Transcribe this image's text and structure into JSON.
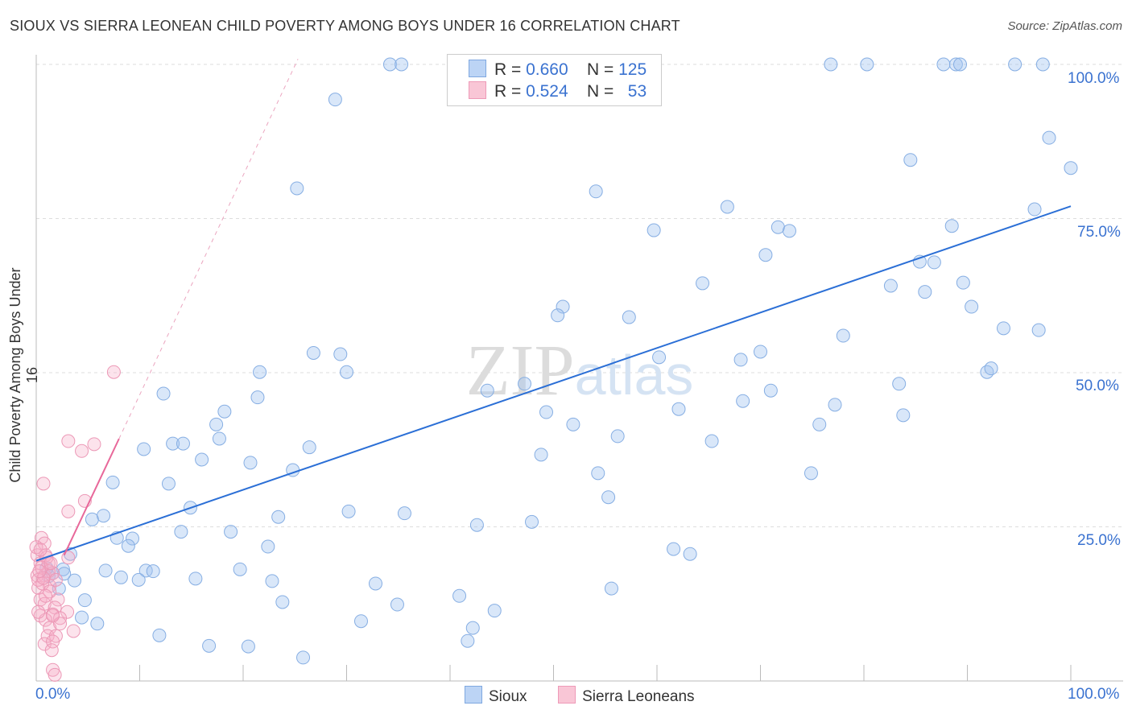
{
  "title": "SIOUX VS SIERRA LEONEAN CHILD POVERTY AMONG BOYS UNDER 16 CORRELATION CHART",
  "source": "Source: ZipAtlas.com",
  "watermark": "ZIPatlas",
  "legend": {
    "rows": [
      {
        "r_label": "R =",
        "r": "0.660",
        "n_label": "N =",
        "n": "125"
      },
      {
        "r_label": "R =",
        "r": "0.524",
        "n_label": "N =",
        "n": "53"
      }
    ],
    "series": [
      "Sioux",
      "Sierra Leoneans"
    ]
  },
  "colors": {
    "sioux": "#6f9fe0",
    "sioux_line": "#2b6fd6",
    "sierra": "#ee8fb0",
    "sierra_line": "#e8689a",
    "tick": "#3a72d0"
  },
  "chart_data": {
    "type": "scatter",
    "title": "SIOUX VS SIERRA LEONEAN CHILD POVERTY AMONG BOYS UNDER 16 CORRELATION CHART",
    "xlabel": "",
    "ylabel": "Child Poverty Among Boys Under 16",
    "xlim": [
      0,
      100
    ],
    "ylim": [
      0,
      100
    ],
    "x_tick_labels": [
      "0.0%",
      "100.0%"
    ],
    "y_tick_labels": [
      "100.0%",
      "75.0%",
      "50.0%",
      "25.0%"
    ],
    "y_ticks": [
      100,
      75,
      50,
      25
    ],
    "grid": true,
    "legend_placement": "top-center and bottom",
    "series": [
      {
        "name": "Sioux",
        "R": 0.66,
        "N": 125,
        "trend": {
          "intercept": 19.5,
          "slope": 0.575,
          "x_range": [
            0,
            100
          ]
        },
        "points": [
          [
            34.2,
            100
          ],
          [
            35.3,
            100
          ],
          [
            76.8,
            100
          ],
          [
            80.3,
            100
          ],
          [
            87.7,
            100
          ],
          [
            88.9,
            100
          ],
          [
            89.3,
            100
          ],
          [
            94.6,
            100
          ],
          [
            97.3,
            100
          ],
          [
            28.9,
            94.3
          ],
          [
            97.9,
            88.1
          ],
          [
            100,
            83.2
          ],
          [
            84.5,
            84.5
          ],
          [
            25.2,
            79.9
          ],
          [
            54.1,
            79.4
          ],
          [
            66.8,
            76.9
          ],
          [
            96.5,
            76.5
          ],
          [
            59.7,
            73.1
          ],
          [
            71.7,
            73.6
          ],
          [
            72.8,
            73.0
          ],
          [
            88.5,
            73.8
          ],
          [
            70.5,
            69.1
          ],
          [
            85.4,
            68.0
          ],
          [
            86.8,
            67.9
          ],
          [
            64.4,
            64.5
          ],
          [
            82.6,
            64.1
          ],
          [
            89.6,
            64.6
          ],
          [
            85.9,
            63.1
          ],
          [
            90.4,
            60.7
          ],
          [
            50.9,
            60.7
          ],
          [
            50.4,
            59.3
          ],
          [
            57.3,
            59.0
          ],
          [
            78.0,
            56.0
          ],
          [
            93.5,
            57.2
          ],
          [
            96.9,
            56.9
          ],
          [
            26.8,
            53.2
          ],
          [
            29.4,
            53.0
          ],
          [
            60.2,
            52.5
          ],
          [
            70.0,
            53.4
          ],
          [
            68.1,
            52.1
          ],
          [
            21.6,
            50.1
          ],
          [
            30.0,
            50.1
          ],
          [
            91.9,
            50.1
          ],
          [
            92.3,
            50.7
          ],
          [
            47.2,
            48.2
          ],
          [
            43.6,
            47.1
          ],
          [
            83.4,
            48.2
          ],
          [
            71.0,
            47.1
          ],
          [
            12.3,
            46.6
          ],
          [
            21.4,
            46.0
          ],
          [
            68.3,
            45.4
          ],
          [
            77.2,
            44.8
          ],
          [
            62.1,
            44.1
          ],
          [
            83.8,
            43.1
          ],
          [
            49.3,
            43.6
          ],
          [
            51.9,
            41.6
          ],
          [
            75.7,
            41.6
          ],
          [
            18.2,
            43.7
          ],
          [
            17.4,
            41.6
          ],
          [
            17.7,
            39.3
          ],
          [
            56.2,
            39.7
          ],
          [
            65.3,
            38.9
          ],
          [
            13.2,
            38.5
          ],
          [
            14.2,
            38.5
          ],
          [
            10.4,
            37.6
          ],
          [
            26.4,
            37.9
          ],
          [
            48.8,
            36.7
          ],
          [
            16.0,
            35.9
          ],
          [
            20.7,
            35.4
          ],
          [
            24.8,
            34.2
          ],
          [
            54.3,
            33.7
          ],
          [
            74.9,
            33.7
          ],
          [
            7.4,
            32.2
          ],
          [
            12.8,
            32.0
          ],
          [
            55.3,
            29.8
          ],
          [
            14.9,
            28.1
          ],
          [
            30.2,
            27.5
          ],
          [
            35.6,
            27.2
          ],
          [
            23.4,
            26.6
          ],
          [
            5.4,
            26.2
          ],
          [
            6.5,
            26.8
          ],
          [
            42.6,
            25.3
          ],
          [
            47.9,
            25.8
          ],
          [
            18.8,
            24.2
          ],
          [
            14.0,
            24.2
          ],
          [
            7.8,
            23.2
          ],
          [
            9.3,
            23.1
          ],
          [
            8.9,
            21.9
          ],
          [
            22.4,
            21.8
          ],
          [
            61.6,
            21.4
          ],
          [
            63.2,
            20.6
          ],
          [
            3.3,
            20.6
          ],
          [
            2.6,
            18.1
          ],
          [
            2.7,
            17.4
          ],
          [
            6.7,
            17.9
          ],
          [
            10.6,
            17.9
          ],
          [
            11.3,
            17.8
          ],
          [
            19.7,
            18.1
          ],
          [
            8.2,
            16.8
          ],
          [
            9.9,
            16.4
          ],
          [
            15.4,
            16.6
          ],
          [
            22.8,
            16.2
          ],
          [
            32.8,
            15.8
          ],
          [
            3.7,
            16.3
          ],
          [
            2.2,
            15.0
          ],
          [
            55.6,
            15.0
          ],
          [
            40.9,
            13.8
          ],
          [
            23.8,
            12.8
          ],
          [
            4.7,
            13.1
          ],
          [
            34.9,
            12.4
          ],
          [
            44.3,
            11.4
          ],
          [
            4.4,
            10.3
          ],
          [
            5.9,
            9.3
          ],
          [
            31.4,
            9.7
          ],
          [
            42.2,
            8.6
          ],
          [
            11.9,
            7.4
          ],
          [
            41.7,
            6.5
          ],
          [
            16.7,
            5.7
          ],
          [
            20.5,
            5.6
          ],
          [
            25.8,
            3.8
          ],
          [
            1.2,
            17.0
          ],
          [
            1.6,
            17.5
          ],
          [
            1.0,
            18.3
          ]
        ]
      },
      {
        "name": "Sierra Leoneans",
        "R": 0.524,
        "N": 53,
        "trend": {
          "intercept": 10.8,
          "slope": 3.56,
          "x_range": [
            0,
            8.0
          ],
          "dashed_extension_to": 25.3
        },
        "points": [
          [
            7.5,
            50.1
          ],
          [
            3.1,
            38.9
          ],
          [
            5.6,
            38.4
          ],
          [
            4.4,
            37.3
          ],
          [
            0.7,
            32.0
          ],
          [
            3.1,
            27.5
          ],
          [
            4.7,
            29.2
          ],
          [
            0.5,
            23.2
          ],
          [
            0.8,
            22.3
          ],
          [
            0.1,
            20.4
          ],
          [
            0.9,
            20.4
          ],
          [
            3.1,
            20.0
          ],
          [
            0.4,
            19.1
          ],
          [
            1.2,
            19.1
          ],
          [
            0.1,
            17.1
          ],
          [
            0.8,
            17.1
          ],
          [
            1.6,
            17.5
          ],
          [
            0.2,
            15.1
          ],
          [
            1.3,
            15.4
          ],
          [
            0.4,
            13.2
          ],
          [
            2.1,
            13.2
          ],
          [
            0.8,
            12.5
          ],
          [
            1.8,
            11.9
          ],
          [
            3.0,
            11.2
          ],
          [
            0.4,
            10.6
          ],
          [
            1.6,
            10.8
          ],
          [
            0.9,
            9.9
          ],
          [
            2.3,
            10.2
          ],
          [
            1.3,
            8.6
          ],
          [
            1.1,
            7.3
          ],
          [
            1.9,
            7.3
          ],
          [
            3.6,
            8.1
          ],
          [
            0.8,
            6.0
          ],
          [
            1.6,
            6.4
          ],
          [
            1.5,
            5.0
          ],
          [
            1.6,
            1.8
          ],
          [
            1.8,
            1.0
          ],
          [
            0.2,
            16.4
          ],
          [
            0.6,
            15.8
          ],
          [
            1.2,
            17.8
          ],
          [
            1.9,
            16.4
          ],
          [
            1.0,
            20.0
          ],
          [
            0.5,
            18.4
          ],
          [
            1.3,
            14.5
          ],
          [
            0.2,
            11.2
          ],
          [
            0,
            21.7
          ],
          [
            0.4,
            21.3
          ],
          [
            0.9,
            13.8
          ],
          [
            2.3,
            9.3
          ],
          [
            1.6,
            10.6
          ],
          [
            0.7,
            16.7
          ],
          [
            0.3,
            17.8
          ],
          [
            1.4,
            19.1
          ]
        ]
      }
    ]
  }
}
